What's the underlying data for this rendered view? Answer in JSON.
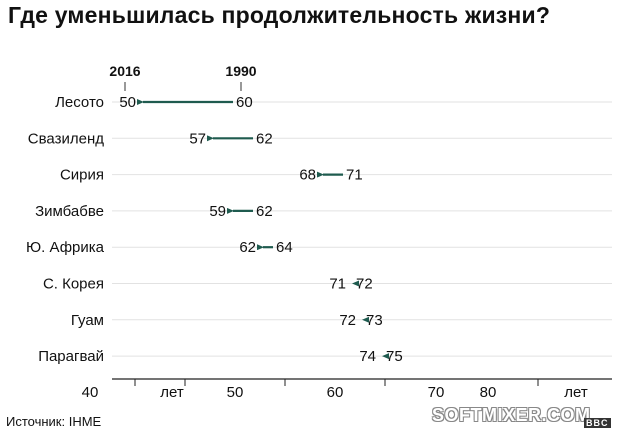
{
  "title": "Где уменьшилась продолжительность жизни?",
  "source": "Источник: IHME",
  "watermark": "SOFTMIXER.COM",
  "logo": "BBC",
  "chart_data": {
    "type": "dumbbell-arrow",
    "title": "Где уменьшилась продолжительность жизни?",
    "series_labels": {
      "from": "1990",
      "to": "2016"
    },
    "categories": [
      "Лесото",
      "Свазиленд",
      "Сирия",
      "Зимбабве",
      "Ю. Африка",
      "С. Корея",
      "Гуам",
      "Парагвай"
    ],
    "values_1990": [
      60,
      62,
      71,
      62,
      64,
      72,
      73,
      75
    ],
    "values_2016": [
      50,
      57,
      68,
      59,
      62,
      71,
      72,
      74
    ],
    "x_ticks": [
      40,
      50,
      60,
      70,
      80
    ],
    "x_unit_label": "лет",
    "xlim": [
      40,
      80
    ],
    "grid": true,
    "arrow_color": "#1f5b4f"
  }
}
